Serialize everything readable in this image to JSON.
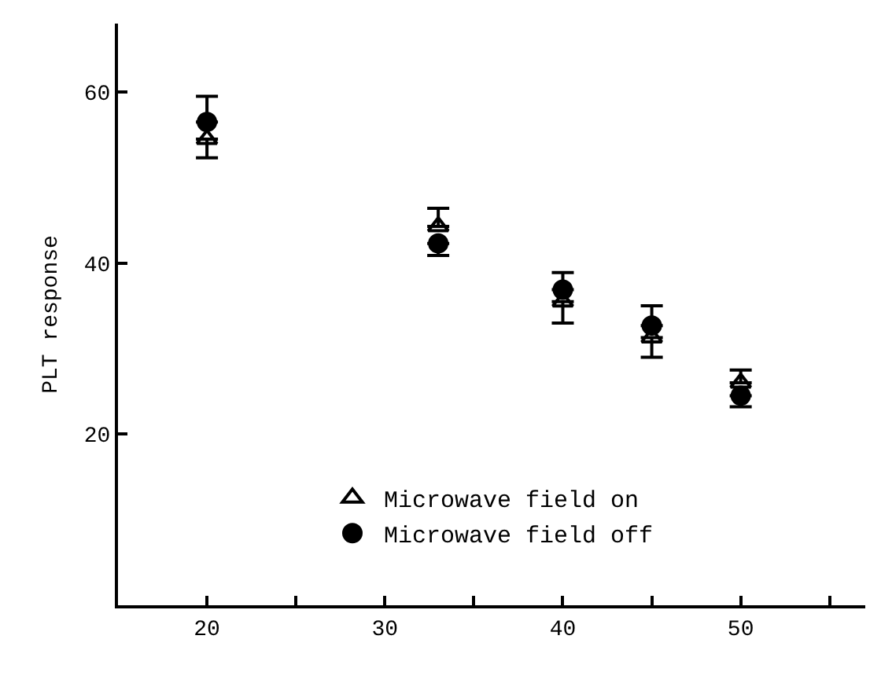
{
  "chart_data": {
    "type": "scatter",
    "ylabel": "PLT response",
    "x": [
      20,
      33,
      40,
      45,
      50
    ],
    "xlim": [
      15,
      57
    ],
    "xticks": [
      20,
      {
        "value": 25,
        "label": null
      },
      30,
      {
        "value": 35,
        "label": null
      },
      40,
      {
        "value": 45,
        "label": null
      },
      50,
      {
        "value": 55,
        "label": null
      }
    ],
    "ylim": [
      0,
      68
    ],
    "yticks": [
      20,
      40,
      60
    ],
    "grid": false,
    "legend": "bottom",
    "series": [
      {
        "name": "Microwave field on",
        "color": "#000000",
        "marker": "triangle",
        "values": [
          54.5,
          44.3,
          35.5,
          31.3,
          26
        ],
        "errors": [
          [
            52.3,
            54.5
          ],
          [
            44.3,
            46.4
          ],
          [
            33,
            35.5
          ],
          [
            29,
            31.3
          ],
          [
            26,
            27.5
          ]
        ]
      },
      {
        "name": "Microwave field off",
        "color": "#000000",
        "marker": "circle",
        "values": [
          56.5,
          42.3,
          36.9,
          32.7,
          24.5
        ],
        "errors": [
          [
            56.5,
            59.5
          ],
          [
            40.9,
            42.3
          ],
          [
            36.9,
            38.9
          ],
          [
            32.7,
            35
          ],
          [
            23.2,
            24.5
          ]
        ]
      }
    ]
  }
}
